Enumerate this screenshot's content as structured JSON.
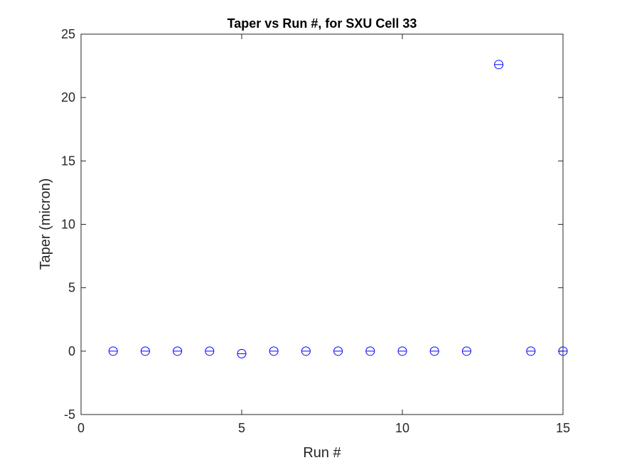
{
  "chart_data": {
    "type": "scatter",
    "title": "Taper vs Run #, for SXU Cell 33",
    "xlabel": "Run #",
    "ylabel": "Taper (micron)",
    "xlim": [
      0,
      15
    ],
    "ylim": [
      -5,
      25
    ],
    "xticks": [
      0,
      5,
      10,
      15
    ],
    "yticks": [
      -5,
      0,
      5,
      10,
      15,
      20,
      25
    ],
    "grid": false,
    "marker": "circle-with-horizontal-line",
    "color": "#0000ff",
    "x": [
      1,
      2,
      3,
      4,
      5,
      6,
      7,
      8,
      9,
      10,
      11,
      12,
      13,
      14,
      15
    ],
    "y": [
      0,
      0,
      0,
      0,
      -0.2,
      0,
      0,
      0,
      0,
      0,
      0,
      0,
      22.6,
      0,
      0
    ]
  }
}
